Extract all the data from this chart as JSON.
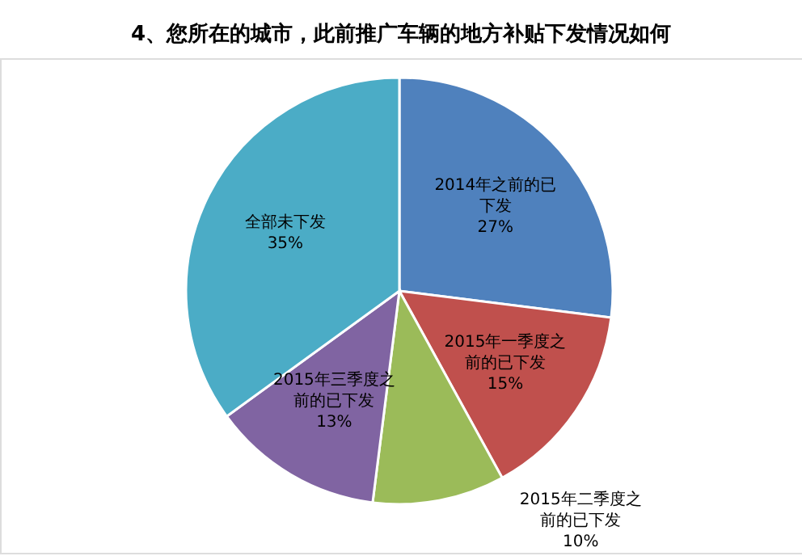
{
  "chart_data": {
    "type": "pie",
    "title": "4、您所在的城市，此前推广车辆的地方补贴下发情况如何",
    "categories": [
      "2014年之前的已下发",
      "2015年一季度之前的已下发",
      "2015年二季度之前的已下发",
      "2015年三季度之前的已下发",
      "全部未下发"
    ],
    "values": [
      27,
      15,
      10,
      13,
      35
    ],
    "colors": [
      "#4f81bd",
      "#c0504d",
      "#9bbb59",
      "#8064a2",
      "#4bacc6"
    ],
    "value_labels": [
      "27%",
      "15%",
      "10%",
      "13%",
      "35%"
    ]
  }
}
